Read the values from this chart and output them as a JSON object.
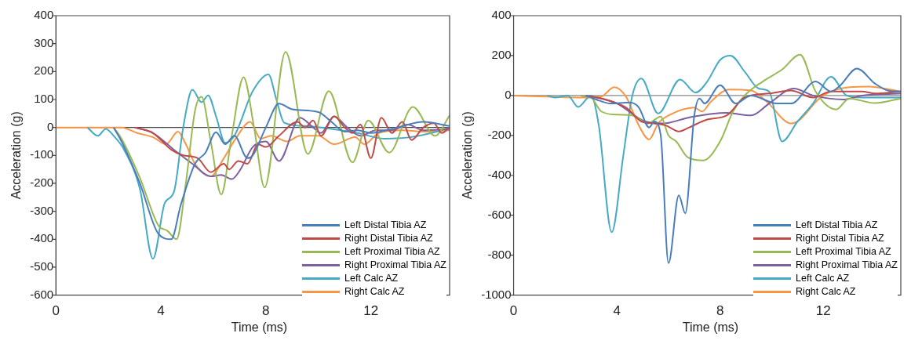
{
  "chart_data": [
    {
      "type": "line",
      "xlabel": "Time (ms)",
      "ylabel": "Acceleration (g)",
      "xlim": [
        0,
        15
      ],
      "ylim": [
        -600,
        400
      ],
      "xticks": [
        0,
        4,
        8,
        12
      ],
      "yticks": [
        -600,
        -500,
        -400,
        -300,
        -200,
        -100,
        0,
        100,
        200,
        300,
        400
      ],
      "ref_lines": [
        {
          "axis": "y",
          "value": 0,
          "color": "#444444"
        }
      ],
      "grid": false,
      "legend": "bottom right",
      "marker": "none",
      "line_style": "solid",
      "series": [
        {
          "name": "Left Distal Tibia AZ",
          "color": "#4a7ebb",
          "x": [
            2.2,
            2.5,
            3.2,
            3.9,
            4.4,
            4.75,
            5.3,
            5.7,
            6.1,
            6.45,
            6.8,
            7.3,
            7.5,
            8,
            8.5,
            9,
            10,
            10.5,
            11,
            11.5,
            12,
            13,
            14,
            15
          ],
          "values": [
            0,
            -50,
            -200,
            -380,
            -400,
            -280,
            -130,
            -90,
            -17,
            -60,
            -30,
            -110,
            -100,
            0,
            85,
            65,
            55,
            20,
            -15,
            -10,
            -20,
            0,
            20,
            5
          ]
        },
        {
          "name": "Right Distal Tibia AZ",
          "color": "#be4b48",
          "x": [
            3,
            3.7,
            4.4,
            4.85,
            5.4,
            5.9,
            6.4,
            6.6,
            6.95,
            7.3,
            7.7,
            8,
            8.5,
            9.2,
            9.5,
            9.8,
            10.1,
            10.6,
            11,
            11.3,
            11.6,
            12,
            12.4,
            12.8,
            13.2,
            13.55,
            14,
            14.4,
            14.7,
            15
          ],
          "values": [
            0,
            -20,
            -80,
            -100,
            -110,
            -160,
            -130,
            -150,
            -120,
            -130,
            -60,
            -70,
            -30,
            20,
            0,
            25,
            -30,
            40,
            0,
            -20,
            10,
            -110,
            35,
            -20,
            20,
            -45,
            0,
            15,
            -20,
            0
          ]
        },
        {
          "name": "Left Proximal Tibia AZ",
          "color": "#98b954",
          "x": [
            2.2,
            2.5,
            3.2,
            3.9,
            4.25,
            4.6,
            4.95,
            5.3,
            5.55,
            5.9,
            6.3,
            6.7,
            7.15,
            7.55,
            7.95,
            8.75,
            9.6,
            10.4,
            11.3,
            11.9,
            12.7,
            13.6,
            14.45,
            15
          ],
          "values": [
            0,
            -40,
            -180,
            -350,
            -370,
            -400,
            -200,
            60,
            110,
            -50,
            -240,
            -30,
            180,
            0,
            -215,
            270,
            -95,
            130,
            -125,
            25,
            -90,
            73,
            -30,
            43
          ]
        },
        {
          "name": "Right Proximal Tibia AZ",
          "color": "#7d60a0",
          "x": [
            3,
            3.7,
            4.5,
            5.2,
            5.9,
            6.3,
            6.7,
            7,
            7.5,
            8,
            8.5,
            9.3,
            9.8,
            10.1,
            10.6,
            11.1,
            11.6,
            12.2,
            12.8,
            13.4,
            14,
            15
          ],
          "values": [
            0,
            -20,
            -80,
            -130,
            -175,
            -170,
            -185,
            -155,
            -70,
            -50,
            -120,
            35,
            0,
            -20,
            40,
            0,
            -30,
            -10,
            -10,
            10,
            -10,
            -5
          ]
        },
        {
          "name": "Left Calc AZ",
          "color": "#46aac5",
          "x": [
            1.2,
            1.6,
            1.9,
            2.2,
            2.6,
            3.2,
            3.7,
            4.15,
            4.5,
            4.85,
            5.2,
            5.55,
            5.8,
            6.1,
            6.45,
            6.8,
            7.5,
            8.1,
            8.4,
            8.7,
            9.5,
            10.5,
            11.5,
            12.5,
            13.5,
            14.5,
            15
          ],
          "values": [
            0,
            -30,
            -5,
            -30,
            -80,
            -220,
            -470,
            -270,
            -230,
            0,
            135,
            90,
            115,
            40,
            -55,
            -30,
            130,
            190,
            100,
            17,
            5,
            -5,
            -20,
            -40,
            -35,
            -15,
            0
          ]
        },
        {
          "name": "Right Calc AZ",
          "color": "#f79646",
          "x": [
            0,
            2.5,
            3.1,
            3.7,
            4.2,
            4.65,
            4.95,
            5.3,
            5.9,
            6.4,
            6.85,
            7.4,
            7.8,
            8.2,
            8.8,
            9.3,
            10,
            10.6,
            11.4,
            11.75,
            12.3,
            13.2,
            14,
            15
          ],
          "values": [
            0,
            0,
            -20,
            -35,
            -60,
            -15,
            -60,
            -130,
            -175,
            -110,
            -40,
            20,
            -40,
            -30,
            -50,
            -30,
            -30,
            -60,
            -35,
            -60,
            -20,
            -10,
            -15,
            -10
          ]
        }
      ]
    },
    {
      "type": "line",
      "xlabel": "Time (ms)",
      "ylabel": "Acceleration (g)",
      "xlim": [
        0,
        15
      ],
      "ylim": [
        -1000,
        400
      ],
      "xticks": [
        0,
        4,
        8,
        12
      ],
      "yticks": [
        -1000,
        -800,
        -600,
        -400,
        -200,
        0,
        200,
        400
      ],
      "ref_lines": [
        {
          "axis": "y",
          "value": 0,
          "color": "#888888"
        }
      ],
      "grid": false,
      "legend": "bottom right",
      "marker": "none",
      "line_style": "solid",
      "series": [
        {
          "name": "Left Distal Tibia AZ",
          "color": "#4a7ebb",
          "x": [
            2.8,
            3.2,
            3.75,
            4.5,
            4.85,
            5.25,
            5.45,
            5.7,
            6,
            6.4,
            6.65,
            7,
            7.2,
            7.4,
            8,
            8.6,
            9.2,
            10.2,
            10.75,
            11.7,
            12.3,
            12.65,
            13.3,
            14,
            14.5,
            15
          ],
          "values": [
            0,
            -20,
            -40,
            -35,
            -60,
            -160,
            -130,
            -200,
            -840,
            -500,
            -590,
            -100,
            -15,
            -40,
            52,
            -40,
            0,
            -40,
            -40,
            70,
            20,
            50,
            135,
            60,
            25,
            20
          ]
        },
        {
          "name": "Right Distal Tibia AZ",
          "color": "#be4b48",
          "x": [
            2.8,
            3.4,
            4.35,
            4.95,
            5.45,
            5.9,
            6.4,
            6.8,
            7.5,
            8.25,
            8.95,
            9.9,
            10.75,
            11.6,
            12.3,
            13.5,
            14,
            15
          ],
          "values": [
            0,
            -15,
            -60,
            -130,
            -140,
            -150,
            -180,
            -160,
            -120,
            -100,
            -10,
            10,
            25,
            -10,
            20,
            20,
            10,
            20
          ]
        },
        {
          "name": "Left Proximal Tibia AZ",
          "color": "#98b954",
          "x": [
            2.6,
            3,
            3.4,
            4,
            4.6,
            5.2,
            5.7,
            6,
            6.3,
            6.75,
            7.35,
            8,
            8.5,
            8.95,
            9.65,
            10.4,
            11.1,
            11.7,
            12.5,
            13,
            14,
            15
          ],
          "values": [
            0,
            -10,
            -80,
            -96,
            -100,
            -140,
            -105,
            -200,
            -230,
            -310,
            -325,
            -230,
            -80,
            0,
            70,
            130,
            205,
            20,
            -70,
            -15,
            -38,
            -15
          ]
        },
        {
          "name": "Right Proximal Tibia AZ",
          "color": "#7d60a0",
          "x": [
            2.6,
            3.4,
            4,
            5.1,
            5.8,
            6.8,
            8.25,
            9.2,
            9.9,
            10.85,
            11.6,
            12.8,
            13.5,
            15
          ],
          "values": [
            0,
            -15,
            -40,
            -130,
            -140,
            -110,
            -87,
            -100,
            -40,
            35,
            0,
            -20,
            0,
            10
          ]
        },
        {
          "name": "Left Calc AZ",
          "color": "#46aac5",
          "x": [
            1.3,
            1.6,
            2.1,
            2.5,
            3,
            3.3,
            3.8,
            4.25,
            4.6,
            4.95,
            5.6,
            6.45,
            7.05,
            7.5,
            8,
            8.4,
            8.95,
            9.5,
            9.9,
            10.4,
            11,
            11.6,
            12.3,
            12.9,
            13.5,
            15
          ],
          "values": [
            0,
            -10,
            0,
            -57,
            0,
            -150,
            -685,
            -300,
            0,
            85,
            -90,
            80,
            15,
            70,
            178,
            200,
            120,
            35,
            20,
            -230,
            -130,
            -40,
            94,
            0,
            -10,
            -10
          ]
        },
        {
          "name": "Right Calc AZ",
          "color": "#f79646",
          "x": [
            0,
            2.9,
            3.4,
            3.9,
            4.35,
            4.85,
            5.25,
            5.6,
            6,
            7,
            7.3,
            7.65,
            8.35,
            9.2,
            9.8,
            10.75,
            11.1,
            11.8,
            12.3,
            13.75,
            15
          ],
          "values": [
            0,
            -10,
            -5,
            42,
            -5,
            -150,
            -220,
            -140,
            -100,
            -60,
            -80,
            -30,
            30,
            25,
            -30,
            -140,
            -120,
            -20,
            20,
            45,
            20
          ]
        }
      ]
    }
  ]
}
